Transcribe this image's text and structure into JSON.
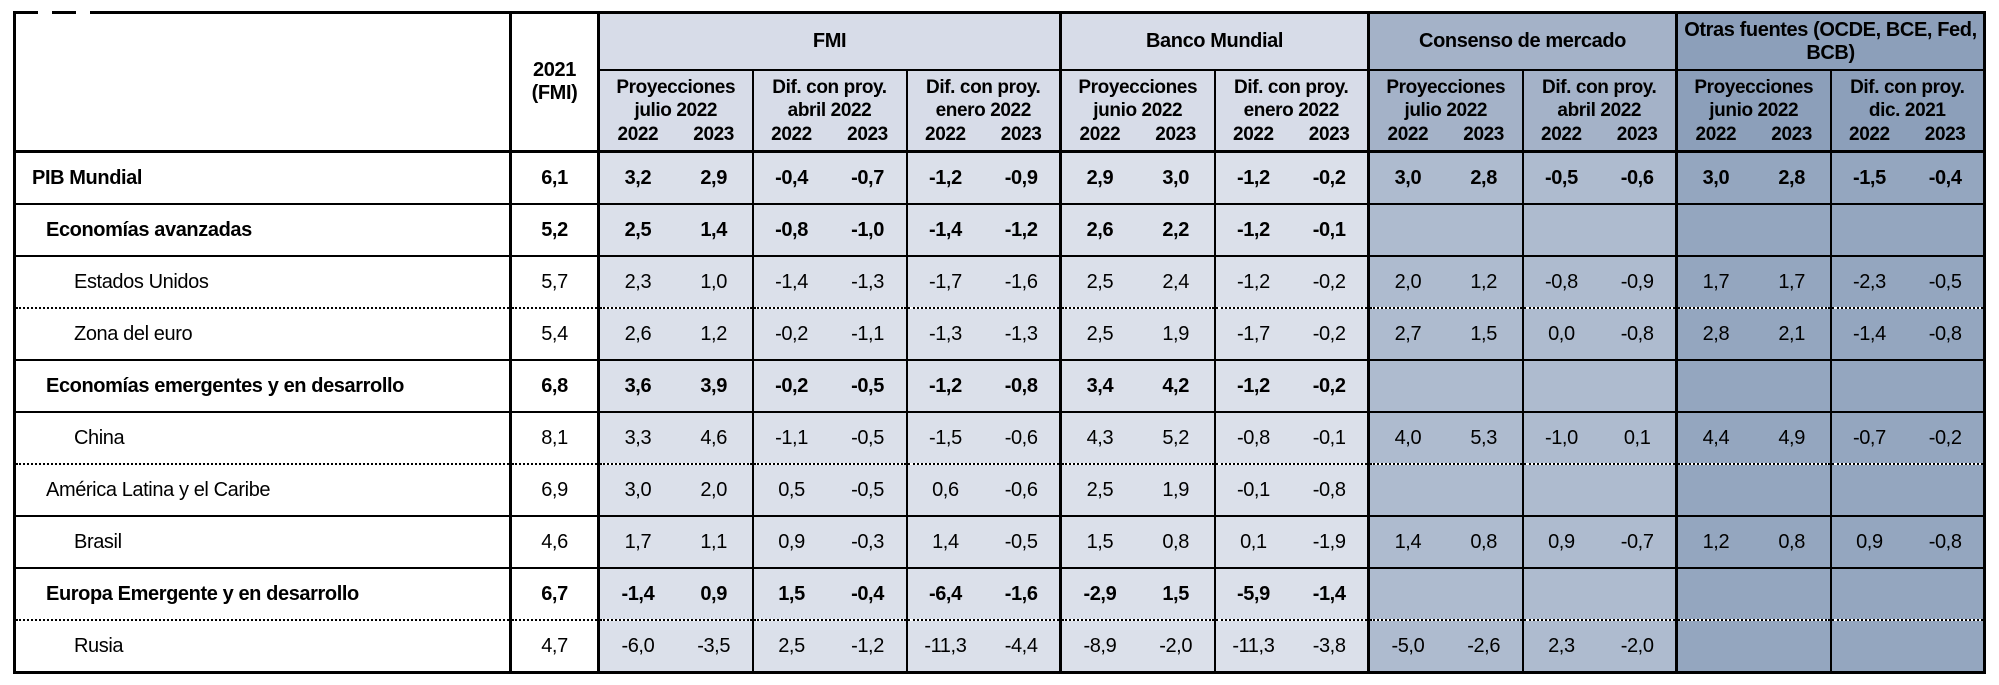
{
  "table": {
    "col2021": {
      "line1": "2021",
      "line2": "(FMI)"
    },
    "years": [
      "2022",
      "2023"
    ],
    "groups": [
      {
        "label": "FMI",
        "subgroups": [
          {
            "label": "Proyecciones julio 2022"
          },
          {
            "label": "Dif. con proy. abril 2022"
          },
          {
            "label": "Dif. con proy. enero 2022"
          }
        ]
      },
      {
        "label": "Banco Mundial",
        "subgroups": [
          {
            "label": "Proyecciones junio 2022"
          },
          {
            "label": "Dif. con proy. enero 2022"
          }
        ]
      },
      {
        "label": "Consenso de mercado",
        "subgroups": [
          {
            "label": "Proyecciones julio 2022"
          },
          {
            "label": "Dif. con proy. abril 2022"
          }
        ]
      },
      {
        "label": "Otras fuentes (OCDE, BCE, Fed, BCB)",
        "subgroups": [
          {
            "label": "Proyecciones junio 2022"
          },
          {
            "label": "Dif. con proy. dic. 2021"
          }
        ]
      }
    ],
    "rows": [
      {
        "label": "PIB Mundial",
        "bold": true,
        "indent": 0,
        "sep": "solid",
        "y2021": "6,1",
        "values": [
          "3,2",
          "2,9",
          "-0,4",
          "-0,7",
          "-1,2",
          "-0,9",
          "2,9",
          "3,0",
          "-1,2",
          "-0,2",
          "3,0",
          "2,8",
          "-0,5",
          "-0,6",
          "3,0",
          "2,8",
          "-1,5",
          "-0,4"
        ]
      },
      {
        "label": "Economías avanzadas",
        "bold": true,
        "indent": 1,
        "sep": "solid",
        "y2021": "5,2",
        "values": [
          "2,5",
          "1,4",
          "-0,8",
          "-1,0",
          "-1,4",
          "-1,2",
          "2,6",
          "2,2",
          "-1,2",
          "-0,1",
          "",
          "",
          "",
          "",
          "",
          "",
          "",
          ""
        ]
      },
      {
        "label": "Estados Unidos",
        "bold": false,
        "indent": 2,
        "sep": "solid",
        "y2021": "5,7",
        "values": [
          "2,3",
          "1,0",
          "-1,4",
          "-1,3",
          "-1,7",
          "-1,6",
          "2,5",
          "2,4",
          "-1,2",
          "-0,2",
          "2,0",
          "1,2",
          "-0,8",
          "-0,9",
          "1,7",
          "1,7",
          "-2,3",
          "-0,5"
        ]
      },
      {
        "label": "Zona del euro",
        "bold": false,
        "indent": 2,
        "sep": "dotted",
        "y2021": "5,4",
        "values": [
          "2,6",
          "1,2",
          "-0,2",
          "-1,1",
          "-1,3",
          "-1,3",
          "2,5",
          "1,9",
          "-1,7",
          "-0,2",
          "2,7",
          "1,5",
          "0,0",
          "-0,8",
          "2,8",
          "2,1",
          "-1,4",
          "-0,8"
        ]
      },
      {
        "label": "Economías emergentes y en desarrollo",
        "bold": true,
        "indent": 1,
        "sep": "solid",
        "y2021": "6,8",
        "values": [
          "3,6",
          "3,9",
          "-0,2",
          "-0,5",
          "-1,2",
          "-0,8",
          "3,4",
          "4,2",
          "-1,2",
          "-0,2",
          "",
          "",
          "",
          "",
          "",
          "",
          "",
          ""
        ]
      },
      {
        "label": "China",
        "bold": false,
        "indent": 2,
        "sep": "solid",
        "y2021": "8,1",
        "values": [
          "3,3",
          "4,6",
          "-1,1",
          "-0,5",
          "-1,5",
          "-0,6",
          "4,3",
          "5,2",
          "-0,8",
          "-0,1",
          "4,0",
          "5,3",
          "-1,0",
          "0,1",
          "4,4",
          "4,9",
          "-0,7",
          "-0,2"
        ]
      },
      {
        "label": "América Latina y el Caribe",
        "bold": false,
        "indent": 1,
        "sep": "dotted",
        "y2021": "6,9",
        "values": [
          "3,0",
          "2,0",
          "0,5",
          "-0,5",
          "0,6",
          "-0,6",
          "2,5",
          "1,9",
          "-0,1",
          "-0,8",
          "",
          "",
          "",
          "",
          "",
          "",
          "",
          ""
        ]
      },
      {
        "label": "Brasil",
        "bold": false,
        "indent": 2,
        "sep": "solid",
        "y2021": "4,6",
        "values": [
          "1,7",
          "1,1",
          "0,9",
          "-0,3",
          "1,4",
          "-0,5",
          "1,5",
          "0,8",
          "0,1",
          "-1,9",
          "1,4",
          "0,8",
          "0,9",
          "-0,7",
          "1,2",
          "0,8",
          "0,9",
          "-0,8"
        ]
      },
      {
        "label": "Europa Emergente y en desarrollo",
        "bold": true,
        "indent": 1,
        "sep": "solid",
        "y2021": "6,7",
        "values": [
          "-1,4",
          "0,9",
          "1,5",
          "-0,4",
          "-6,4",
          "-1,6",
          "-2,9",
          "1,5",
          "-5,9",
          "-1,4",
          "",
          "",
          "",
          "",
          "",
          "",
          "",
          ""
        ]
      },
      {
        "label": "Rusia",
        "bold": false,
        "indent": 2,
        "sep": "dotted",
        "y2021": "4,7",
        "values": [
          "-6,0",
          "-3,5",
          "2,5",
          "-1,2",
          "-11,3",
          "-4,4",
          "-8,9",
          "-2,0",
          "-11,3",
          "-3,8",
          "-5,0",
          "-2,6",
          "2,3",
          "-2,0",
          "",
          "",
          "",
          ""
        ]
      }
    ],
    "colors": {
      "band_light": "#dbe0ea",
      "band_consensus": "#aebbcf",
      "band_other_sources": "#94a6bf",
      "border": "#000000"
    }
  }
}
